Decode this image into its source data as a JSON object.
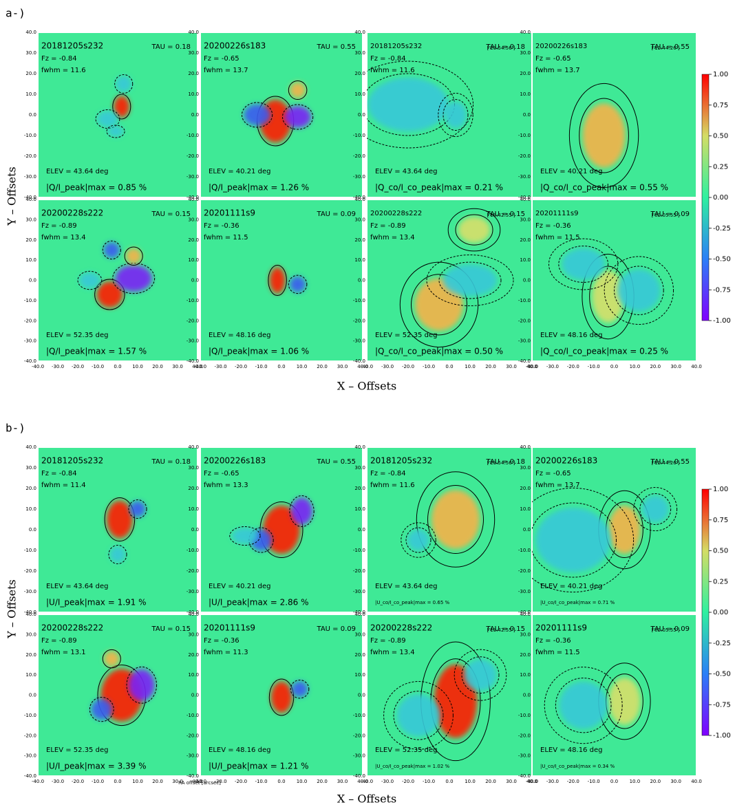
{
  "figures": [
    {
      "label": "a-)",
      "y_label": "Y – Offsets",
      "x_label": "X – Offsets",
      "panels": [
        {
          "name": "20181205s232",
          "tau": "TAU = 0.18",
          "fz": "Fz = -0.84",
          "fwhm": "fwhm = 11.6",
          "elev": "ELEV = 43.64 deg",
          "ratio": "|Q/I_peak|max = 0.85 %"
        },
        {
          "name": "20200226s183",
          "tau": "TAU = 0.55",
          "fz": "Fz = -0.65",
          "fwhm": "fwhm = 13.7",
          "elev": "ELEV = 40.21 deg",
          "ratio": "|Q/I_peak|max = 1.26 %"
        },
        {
          "name": "20181205s232",
          "time": "['23:54:56']",
          "tau": "TAU = 0.18",
          "fz": "Fz = -0.84",
          "fwhm": "fwhm = 11.6",
          "elev": "ELEV = 43.64 deg",
          "ratio": "|Q_co/I_co_peak|max = 0.21 %"
        },
        {
          "name": "20200226s183",
          "time": "['12:44:26']",
          "tau": "TAU = 0.55",
          "fz": "Fz = -0.65",
          "fwhm": "fwhm = 13.7",
          "elev": "ELEV = 40.21 deg",
          "ratio": "|Q_co/I_co_peak|max = 0.55 %"
        },
        {
          "name": "20200228s222",
          "tau": "TAU = 0.15",
          "fz": "Fz = -0.89",
          "fwhm": "fwhm = 13.4",
          "elev": "ELEV = 52.35 deg",
          "ratio": "|Q/I_peak|max = 1.57 %"
        },
        {
          "name": "20201111s9",
          "tau": "TAU = 0.09",
          "fz": "Fz = -0.36",
          "fwhm": "fwhm = 11.5",
          "elev": "ELEV = 48.16 deg",
          "ratio": "|Q/I_peak|max = 1.06 %"
        },
        {
          "name": "20200228s222",
          "time": "['13:42:55']",
          "tau": "TAU = 0.15",
          "fz": "Fz = -0.89",
          "fwhm": "fwhm = 13.4",
          "elev": "ELEV = 52.35 deg",
          "ratio": "|Q_co/I_co_peak|max = 0.50 %"
        },
        {
          "name": "20201111s9",
          "time": "['02:05:55']",
          "tau": "TAU = 0.09",
          "fz": "Fz = -0.36",
          "fwhm": "fwhm = 11.5",
          "elev": "ELEV = 48.16 deg",
          "ratio": "|Q_co/I_co_peak|max = 0.25 %"
        }
      ]
    },
    {
      "label": "b-)",
      "y_label": "Y – Offsets",
      "x_label": "X – Offsets",
      "x_sublabel": "RA offset [arcsec]",
      "panels": [
        {
          "name": "20181205s232",
          "tau": "TAU = 0.18",
          "fz": "Fz = -0.84",
          "fwhm": "fwhm = 11.4",
          "elev": "ELEV = 43.64 deg",
          "ratio": "|U/I_peak|max = 1.91 %"
        },
        {
          "name": "20200226s183",
          "tau": "TAU = 0.55",
          "fz": "Fz = -0.65",
          "fwhm": "fwhm = 13.3",
          "elev": "ELEV = 40.21 deg",
          "ratio": "|U/I_peak|max = 2.86 %"
        },
        {
          "name": "20181205s232",
          "time": "['23:54:56']",
          "tau": "TAU = 0.18",
          "fz": "Fz = -0.84",
          "fwhm": "fwhm = 11.6",
          "elev": "ELEV = 43.64 deg",
          "ratio": "|U_co/I_co_peak|max = 0.65 %"
        },
        {
          "name": "20200226s183",
          "time": "['12:44:26']",
          "tau": "TAU = 0.55",
          "fz": "Fz = -0.65",
          "fwhm": "fwhm = 13.7",
          "elev": "ELEV = 40.21 deg",
          "ratio": "|U_co/I_co_peak|max = 0.71 %"
        },
        {
          "name": "20200228s222",
          "tau": "TAU = 0.15",
          "fz": "Fz = -0.89",
          "fwhm": "fwhm = 13.1",
          "elev": "ELEV = 52.35 deg",
          "ratio": "|U/I_peak|max = 3.39 %"
        },
        {
          "name": "20201111s9",
          "tau": "TAU = 0.09",
          "fz": "Fz = -0.36",
          "fwhm": "fwhm = 11.3",
          "elev": "ELEV = 48.16 deg",
          "ratio": "|U/I_peak|max = 1.21 %"
        },
        {
          "name": "20200228s222",
          "time": "['13:42:55']",
          "tau": "TAU = 0.15",
          "fz": "Fz = -0.89",
          "fwhm": "fwhm = 13.4",
          "elev": "ELEV = 52.35 deg",
          "ratio": "|U_co/I_co_peak|max = 1.02 %"
        },
        {
          "name": "20201111s9",
          "time": "['02:05:55']",
          "tau": "TAU = 0.09",
          "fz": "Fz = -0.36",
          "fwhm": "fwhm = 11.5",
          "elev": "ELEV = 48.16 deg",
          "ratio": "|U_co/I_co_peak|max = 0.34 %"
        }
      ]
    }
  ],
  "axis_ticks": [
    "-40.0",
    "-30.0",
    "-20.0",
    "-10.0",
    "0.0",
    "10.0",
    "20.0",
    "30.0",
    "40.0"
  ],
  "colorbar_ticks": [
    "-1.00",
    "-0.75",
    "-0.50",
    "-0.25",
    "0.00",
    "0.25",
    "0.50",
    "0.75",
    "1.00"
  ]
}
